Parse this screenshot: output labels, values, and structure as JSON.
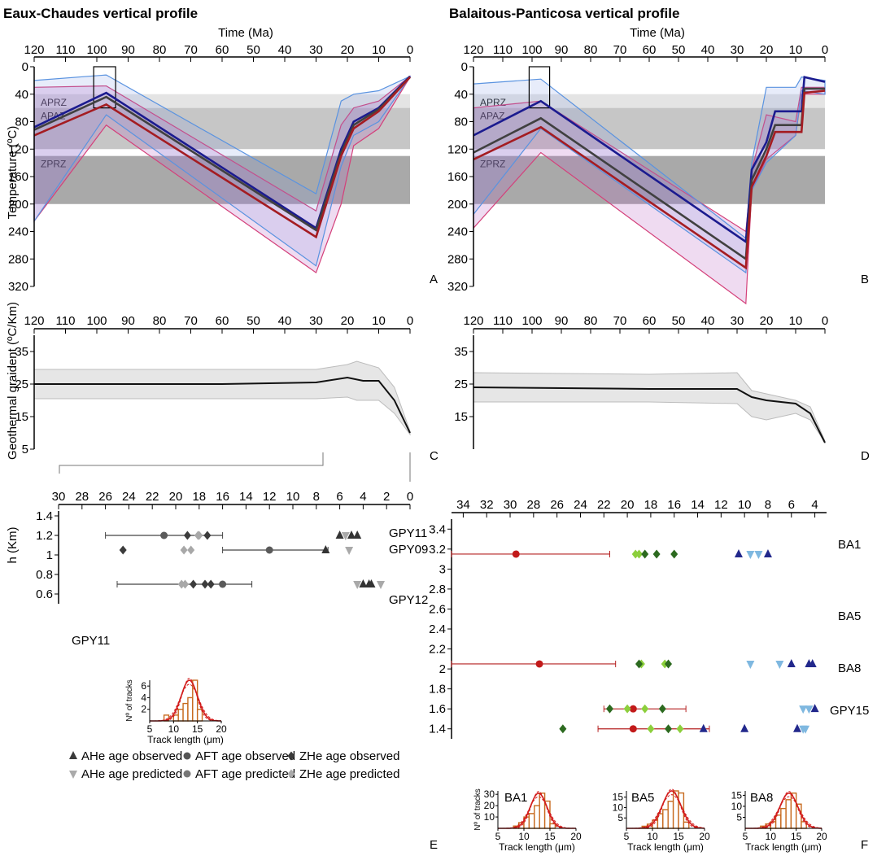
{
  "chart_data": [
    {
      "panel": "A",
      "type": "line",
      "title": "Eaux-Chaudes vertical profile",
      "xlabel": "Time (Ma)",
      "ylabel": "Temperature (ºC)",
      "xlim": [
        120,
        0
      ],
      "ylim": [
        0,
        320
      ],
      "x_ticks": [
        120,
        110,
        100,
        90,
        80,
        70,
        60,
        50,
        40,
        30,
        20,
        10,
        0
      ],
      "y_ticks": [
        0,
        40,
        80,
        120,
        160,
        200,
        240,
        280,
        320
      ],
      "zones": [
        {
          "label": "APRZ",
          "range": [
            40,
            60
          ]
        },
        {
          "label": "APAZ",
          "range": [
            60,
            120
          ]
        },
        {
          "label": "ZPRZ",
          "range": [
            130,
            200
          ]
        }
      ],
      "series": [
        {
          "color": "#1b1b8f",
          "x": [
            120,
            97,
            30,
            22,
            18,
            10,
            0
          ],
          "y": [
            88,
            38,
            235,
            120,
            80,
            60,
            14
          ]
        },
        {
          "color": "#404040",
          "x": [
            120,
            97,
            30,
            22,
            18,
            10,
            0
          ],
          "y": [
            92,
            44,
            238,
            125,
            85,
            62,
            15
          ]
        },
        {
          "color": "#a41c22",
          "x": [
            120,
            97,
            30,
            22,
            18,
            10,
            0
          ],
          "y": [
            100,
            55,
            248,
            130,
            90,
            65,
            15
          ]
        }
      ],
      "envelope_blue": {
        "x": [
          120,
          97,
          30,
          22,
          18,
          10,
          0
        ],
        "low": [
          20,
          12,
          185,
          50,
          40,
          35,
          14
        ],
        "high": [
          225,
          70,
          290,
          145,
          100,
          80,
          15
        ]
      },
      "envelope_magenta": {
        "x": [
          120,
          97,
          30,
          22,
          18,
          10,
          0
        ],
        "low": [
          30,
          28,
          210,
          85,
          60,
          50,
          14
        ],
        "high": [
          225,
          85,
          300,
          200,
          115,
          90,
          15
        ]
      }
    },
    {
      "panel": "B",
      "type": "line",
      "title": "Balaitous-Panticosa vertical profile",
      "xlabel": "Time (Ma)",
      "xlim": [
        120,
        0
      ],
      "ylim": [
        0,
        320
      ],
      "x_ticks": [
        120,
        110,
        100,
        90,
        80,
        70,
        60,
        50,
        40,
        30,
        20,
        10,
        0
      ],
      "y_ticks": [
        0,
        40,
        80,
        120,
        160,
        200,
        240,
        280,
        320
      ],
      "zones": [
        {
          "label": "APRZ",
          "range": [
            40,
            60
          ]
        },
        {
          "label": "APAZ",
          "range": [
            60,
            120
          ]
        },
        {
          "label": "ZPRZ",
          "range": [
            130,
            200
          ]
        }
      ],
      "series": [
        {
          "color": "#1b1b8f",
          "x": [
            120,
            97,
            27,
            25,
            20,
            17,
            10,
            8,
            7,
            0
          ],
          "y": [
            100,
            50,
            255,
            150,
            110,
            65,
            65,
            65,
            15,
            22
          ]
        },
        {
          "color": "#404040",
          "x": [
            120,
            97,
            27,
            25,
            20,
            17,
            10,
            8,
            7,
            0
          ],
          "y": [
            125,
            75,
            280,
            165,
            120,
            85,
            85,
            85,
            32,
            32
          ]
        },
        {
          "color": "#a41c22",
          "x": [
            120,
            97,
            27,
            25,
            20,
            17,
            10,
            8,
            7,
            0
          ],
          "y": [
            135,
            88,
            293,
            175,
            130,
            95,
            95,
            95,
            38,
            35
          ]
        }
      ],
      "envelope_blue": {
        "x": [
          120,
          97,
          27,
          25,
          20,
          10,
          8,
          0
        ],
        "low": [
          25,
          18,
          250,
          140,
          30,
          30,
          15,
          20
        ],
        "high": [
          215,
          90,
          300,
          180,
          140,
          100,
          35,
          40
        ]
      },
      "envelope_magenta": {
        "x": [
          120,
          97,
          27,
          25,
          20,
          10,
          8,
          0
        ],
        "low": [
          60,
          50,
          240,
          150,
          70,
          80,
          30,
          30
        ],
        "high": [
          235,
          125,
          345,
          180,
          135,
          100,
          40,
          40
        ]
      }
    },
    {
      "panel": "C",
      "type": "area",
      "xlim": [
        120,
        0
      ],
      "ylim": [
        5,
        40
      ],
      "x_ticks": [
        120,
        110,
        100,
        90,
        80,
        70,
        60,
        50,
        40,
        30,
        20,
        10,
        0
      ],
      "y_ticks": [
        5,
        15,
        25,
        35
      ],
      "ylabel": "Geothermal graident (ºC/Km)",
      "line": {
        "x": [
          120,
          60,
          30,
          20,
          15,
          10,
          5,
          0
        ],
        "y": [
          25,
          25,
          25.5,
          27,
          26,
          26,
          20,
          10
        ]
      },
      "envelope": {
        "x": [
          120,
          60,
          30,
          20,
          17,
          10,
          5,
          0
        ],
        "low": [
          20.5,
          20.5,
          20.5,
          21,
          20,
          20,
          16,
          9.5
        ],
        "high": [
          29.5,
          29.5,
          29.5,
          31,
          32,
          30,
          24,
          10.5
        ]
      }
    },
    {
      "panel": "D",
      "type": "area",
      "xlim": [
        120,
        0
      ],
      "ylim": [
        5,
        40
      ],
      "x_ticks": [
        120,
        110,
        100,
        90,
        80,
        70,
        60,
        50,
        40,
        30,
        20,
        10,
        0
      ],
      "y_ticks": [
        15,
        25,
        35
      ],
      "line": {
        "x": [
          120,
          60,
          30,
          25,
          20,
          10,
          5,
          0
        ],
        "y": [
          24,
          23.5,
          23.5,
          21,
          20,
          19,
          16,
          7
        ]
      },
      "envelope": {
        "x": [
          120,
          60,
          30,
          25,
          20,
          10,
          5,
          0
        ],
        "low": [
          19.5,
          19.5,
          19,
          15,
          14,
          16,
          14,
          7
        ],
        "high": [
          28.5,
          28,
          28.5,
          23,
          22,
          20,
          18,
          7.5
        ]
      }
    },
    {
      "panel": "E",
      "type": "scatter",
      "ylabel": "h (Km)",
      "xlim": [
        30,
        0
      ],
      "ylim": [
        0.5,
        1.45
      ],
      "x_ticks": [
        30,
        28,
        26,
        24,
        22,
        20,
        18,
        16,
        14,
        12,
        10,
        8,
        6,
        4,
        2,
        0
      ],
      "y_ticks": [
        0.6,
        0.8,
        1,
        1.2,
        1.4
      ],
      "samples": [
        {
          "label": "GPY11",
          "y": 1.2,
          "aft_obs": 21,
          "aft_err": [
            26,
            16
          ],
          "zhe_obs": [
            19,
            17.3
          ],
          "zhe_pred": [
            18.1,
            18
          ],
          "ahe_obs": [
            6,
            5,
            4.5
          ],
          "ahe_pred": [
            5.5
          ]
        },
        {
          "label": "GPY09",
          "y": 1.05,
          "aft_obs": 12,
          "aft_err": [
            16,
            7
          ],
          "zhe_obs": [
            24.5
          ],
          "zhe_pred": [
            19.3,
            18.7
          ],
          "ahe_obs": [
            7.2
          ],
          "ahe_pred": [
            5.2
          ]
        },
        {
          "label": "GPY12",
          "y": 0.7,
          "aft_obs": 16,
          "aft_err": [
            25,
            13.5
          ],
          "zhe_obs": [
            18.5,
            17.5,
            17
          ],
          "zhe_pred": [
            19.5,
            19.2
          ],
          "ahe_obs": [
            4,
            3.5,
            3.3
          ],
          "ahe_pred": [
            4.5,
            2.5
          ]
        }
      ],
      "histogram": {
        "label": "GPY11",
        "xlabel": "Track length (μm)",
        "ylabel": "Nº of tracks",
        "xlim": [
          5,
          20
        ],
        "ylim": [
          0,
          7
        ],
        "x_ticks": [
          5,
          10,
          15,
          20
        ],
        "y_ticks": [
          2,
          4,
          6
        ],
        "bins": [
          8,
          9,
          10,
          11,
          12,
          13,
          14,
          15,
          16
        ],
        "counts": [
          1,
          0,
          1,
          2,
          3,
          4,
          7,
          2,
          0
        ]
      },
      "legend": [
        {
          "label": "AHe age observed",
          "marker": "triangle",
          "color": "#3a3a3a"
        },
        {
          "label": "AFT age observed",
          "marker": "circle",
          "color": "#555555"
        },
        {
          "label": "ZHe age observed",
          "marker": "diamond",
          "color": "#3a3a3a"
        },
        {
          "label": "AHe age predicted",
          "marker": "triangle-down",
          "color": "#aaaaaa"
        },
        {
          "label": "AFT age predicted",
          "marker": "circle",
          "color": "#777777"
        },
        {
          "label": "ZHe age predicted",
          "marker": "diamond",
          "color": "#aaaaaa"
        }
      ]
    },
    {
      "panel": "F",
      "type": "scatter",
      "xlim": [
        35,
        3
      ],
      "ylim": [
        1.3,
        3.5
      ],
      "x_ticks": [
        34,
        32,
        30,
        28,
        26,
        24,
        22,
        20,
        18,
        16,
        14,
        12,
        10,
        8,
        6,
        4
      ],
      "y_ticks": [
        1.4,
        1.6,
        1.8,
        2,
        2.2,
        2.4,
        2.6,
        2.8,
        3,
        3.2,
        3.4
      ],
      "samples": [
        {
          "label": "BA1",
          "y": 3.15,
          "aft_obs": 29.5,
          "aft_err": [
            35,
            21.5
          ],
          "zhe_obs": [
            18.5,
            17.5,
            16
          ],
          "zhe_pred": [
            19.3,
            19
          ],
          "ahe_obs": [
            10.5,
            8
          ],
          "ahe_pred": [
            9.5,
            8.8
          ]
        },
        {
          "label": "BA5",
          "y": 2.05,
          "aft_obs": 27.5,
          "aft_err": [
            35,
            21
          ],
          "zhe_obs": [
            19,
            16.5
          ],
          "zhe_pred": [
            18.8,
            16.8
          ],
          "ahe_obs": [
            6,
            4.5,
            4.2
          ],
          "ahe_pred": [
            9.5,
            7
          ]
        },
        {
          "label": "BA8",
          "y": 1.6,
          "aft_obs": 19.5,
          "aft_err": [
            22,
            15
          ],
          "zhe_obs": [
            21.5,
            17
          ],
          "zhe_pred": [
            20,
            18.5
          ],
          "ahe_obs": [
            4
          ],
          "ahe_pred": [
            5,
            4.5
          ]
        },
        {
          "label": "GPY15",
          "y": 1.4,
          "aft_obs": 19.5,
          "aft_err": [
            22.5,
            13
          ],
          "zhe_obs": [
            25.5,
            16.5
          ],
          "zhe_pred": [
            18,
            15.5
          ],
          "ahe_obs": [
            13.5,
            10,
            5.5
          ],
          "ahe_pred": [
            5,
            4.8
          ]
        }
      ],
      "histograms": [
        {
          "label": "BA1",
          "xlabel": "Track length (μm)",
          "ylabel": "Nº of tracks",
          "xlim": [
            5,
            20
          ],
          "ylim": [
            0,
            33
          ],
          "x_ticks": [
            5,
            10,
            15,
            20
          ],
          "y_ticks": [
            10,
            20,
            30
          ],
          "bins": [
            8,
            9,
            10,
            11,
            12,
            13,
            14,
            15
          ],
          "counts": [
            2,
            5,
            10,
            13,
            20,
            31,
            24,
            4
          ]
        },
        {
          "label": "BA5",
          "xlabel": "Track length (μm)",
          "ylabel": "",
          "xlim": [
            5,
            20
          ],
          "ylim": [
            0,
            18
          ],
          "x_ticks": [
            5,
            10,
            15,
            20
          ],
          "y_ticks": [
            5,
            10,
            15
          ],
          "bins": [
            8,
            9,
            10,
            11,
            12,
            13,
            14,
            15,
            16
          ],
          "counts": [
            1,
            2,
            4,
            7,
            9,
            13,
            18,
            17,
            3
          ]
        },
        {
          "label": "BA8",
          "xlabel": "Track length (μm)",
          "ylabel": "",
          "xlim": [
            5,
            20
          ],
          "ylim": [
            0,
            17
          ],
          "x_ticks": [
            5,
            10,
            15,
            20
          ],
          "y_ticks": [
            5,
            10,
            15
          ],
          "bins": [
            8,
            9,
            10,
            11,
            12,
            13,
            14,
            15,
            16
          ],
          "counts": [
            1,
            2,
            3,
            6,
            9,
            13,
            16,
            11,
            3
          ]
        }
      ]
    }
  ]
}
